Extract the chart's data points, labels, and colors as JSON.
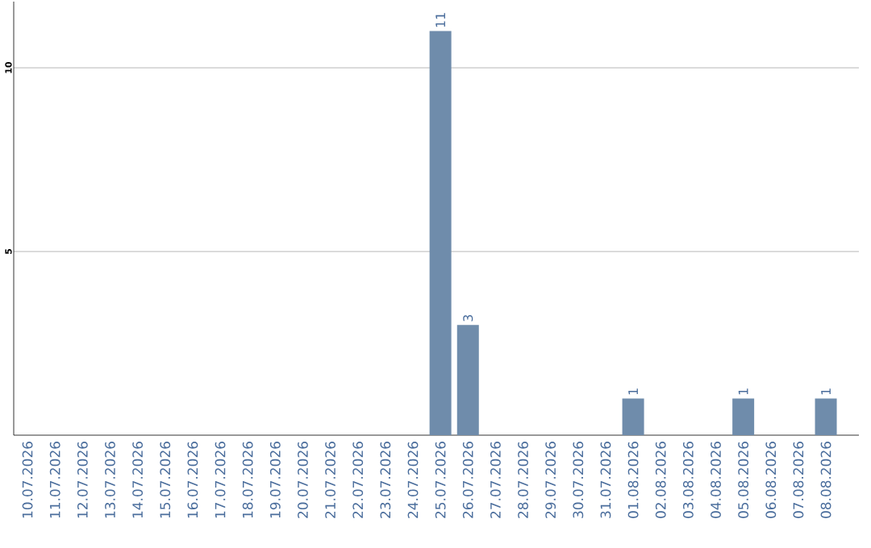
{
  "chart_data": {
    "type": "bar",
    "categories": [
      "10.07.2026",
      "11.07.2026",
      "12.07.2026",
      "13.07.2026",
      "14.07.2026",
      "15.07.2026",
      "16.07.2026",
      "17.07.2026",
      "18.07.2026",
      "19.07.2026",
      "20.07.2026",
      "21.07.2026",
      "22.07.2026",
      "23.07.2026",
      "24.07.2026",
      "25.07.2026",
      "26.07.2026",
      "27.07.2026",
      "28.07.2026",
      "29.07.2026",
      "30.07.2026",
      "31.07.2026",
      "01.08.2026",
      "02.08.2026",
      "03.08.2026",
      "04.08.2026",
      "05.08.2026",
      "06.08.2026",
      "07.08.2026",
      "08.08.2026"
    ],
    "values": [
      0,
      0,
      0,
      0,
      0,
      0,
      0,
      0,
      0,
      0,
      0,
      0,
      0,
      0,
      0,
      11,
      3,
      0,
      0,
      0,
      0,
      0,
      1,
      0,
      0,
      0,
      1,
      0,
      0,
      1
    ],
    "value_labels": [
      null,
      null,
      null,
      null,
      null,
      null,
      null,
      null,
      null,
      null,
      null,
      null,
      null,
      null,
      null,
      "11",
      "3",
      null,
      null,
      null,
      null,
      null,
      "1",
      null,
      null,
      null,
      "1",
      null,
      null,
      "1"
    ],
    "color": "#6f8cab",
    "ylim": [
      0,
      11.8
    ],
    "yticks": [
      5,
      10
    ],
    "grid": "y"
  }
}
